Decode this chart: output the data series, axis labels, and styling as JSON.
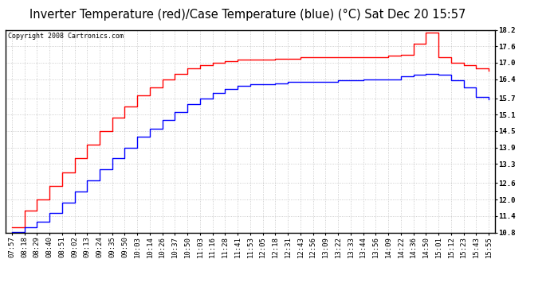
{
  "title": "Inverter Temperature (red)/Case Temperature (blue) (°C) Sat Dec 20 15:57",
  "copyright": "Copyright 2008 Cartronics.com",
  "x_labels": [
    "07:57",
    "08:18",
    "08:29",
    "08:40",
    "08:51",
    "09:02",
    "09:13",
    "09:24",
    "09:35",
    "09:50",
    "10:03",
    "10:14",
    "10:26",
    "10:37",
    "10:50",
    "11:03",
    "11:16",
    "11:28",
    "11:41",
    "11:53",
    "12:05",
    "12:18",
    "12:31",
    "12:43",
    "12:56",
    "13:09",
    "13:22",
    "13:33",
    "13:44",
    "13:56",
    "14:09",
    "14:22",
    "14:36",
    "14:50",
    "15:01",
    "15:12",
    "15:23",
    "15:43",
    "15:55"
  ],
  "red_values": [
    11.0,
    11.6,
    12.0,
    12.5,
    13.0,
    13.5,
    14.0,
    14.5,
    15.0,
    15.4,
    15.8,
    16.1,
    16.4,
    16.6,
    16.8,
    16.9,
    17.0,
    17.05,
    17.1,
    17.1,
    17.1,
    17.15,
    17.15,
    17.2,
    17.2,
    17.2,
    17.2,
    17.2,
    17.2,
    17.2,
    17.25,
    17.3,
    17.7,
    18.1,
    17.2,
    17.0,
    16.9,
    16.8,
    16.7
  ],
  "blue_values": [
    10.82,
    11.0,
    11.2,
    11.5,
    11.9,
    12.3,
    12.7,
    13.1,
    13.5,
    13.9,
    14.3,
    14.6,
    14.9,
    15.2,
    15.5,
    15.7,
    15.9,
    16.05,
    16.15,
    16.2,
    16.2,
    16.25,
    16.3,
    16.3,
    16.3,
    16.3,
    16.35,
    16.35,
    16.4,
    16.4,
    16.4,
    16.5,
    16.55,
    16.6,
    16.55,
    16.35,
    16.1,
    15.75,
    15.65
  ],
  "ylim": [
    10.8,
    18.2
  ],
  "yticks": [
    10.8,
    11.4,
    12.0,
    12.6,
    13.3,
    13.9,
    14.5,
    15.1,
    15.7,
    16.4,
    17.0,
    17.6,
    18.2
  ],
  "red_color": "#ff0000",
  "blue_color": "#0000ff",
  "bg_color": "#ffffff",
  "grid_color": "#b0b0b0",
  "title_fontsize": 10.5,
  "tick_fontsize": 6.5,
  "copyright_fontsize": 6.0
}
